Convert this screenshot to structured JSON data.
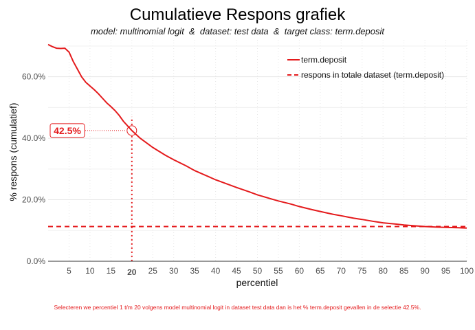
{
  "chart_data": {
    "type": "line",
    "title": "Cumulatieve Respons grafiek",
    "subtitle": "model: multinomial logit  &  dataset: test data  &  target class: term.deposit",
    "xlabel": "percentiel",
    "ylabel": "% respons (cumulatief)",
    "x_ticks": [
      "5",
      "10",
      "15",
      "20",
      "25",
      "30",
      "35",
      "40",
      "45",
      "50",
      "55",
      "60",
      "65",
      "70",
      "75",
      "80",
      "85",
      "90",
      "95",
      "100"
    ],
    "y_ticks": [
      "0.0%",
      "20.0%",
      "40.0%",
      "60.0%"
    ],
    "xlim": [
      0,
      100
    ],
    "ylim": [
      0,
      0.72
    ],
    "grid": true,
    "legend_position": "top-right",
    "series": [
      {
        "name": "term.deposit",
        "color": "#e41a1c",
        "style": "solid",
        "x": [
          1,
          2,
          3,
          4,
          5,
          6,
          7,
          8,
          9,
          10,
          11,
          12,
          13,
          14,
          15,
          16,
          17,
          18,
          19,
          20,
          22,
          25,
          28,
          30,
          33,
          35,
          38,
          40,
          43,
          45,
          48,
          50,
          53,
          55,
          58,
          60,
          63,
          65,
          68,
          70,
          73,
          75,
          78,
          80,
          83,
          85,
          88,
          90,
          93,
          95,
          98,
          100
        ],
        "y": [
          0.698,
          0.693,
          0.692,
          0.693,
          0.68,
          0.65,
          0.625,
          0.6,
          0.582,
          0.57,
          0.558,
          0.545,
          0.53,
          0.515,
          0.503,
          0.49,
          0.474,
          0.455,
          0.44,
          0.425,
          0.4,
          0.37,
          0.345,
          0.33,
          0.31,
          0.295,
          0.277,
          0.265,
          0.25,
          0.24,
          0.226,
          0.216,
          0.204,
          0.196,
          0.186,
          0.178,
          0.168,
          0.162,
          0.153,
          0.148,
          0.14,
          0.136,
          0.129,
          0.125,
          0.121,
          0.118,
          0.115,
          0.113,
          0.111,
          0.11,
          0.109,
          0.108
        ]
      },
      {
        "name": "respons in totale dataset (term.deposit)",
        "color": "#e41a1c",
        "style": "dashed",
        "x": [
          0,
          100
        ],
        "y": [
          0.113,
          0.113
        ]
      }
    ],
    "annotation": {
      "x": 20,
      "y": 0.425,
      "label": "42.5%",
      "x_label": "20"
    }
  },
  "footnote": "Selecteren we percentiel 1 t/m 20 volgens model multinomial logit in dataset test data dan is het % term.deposit gevallen in de selectie 42.5%."
}
